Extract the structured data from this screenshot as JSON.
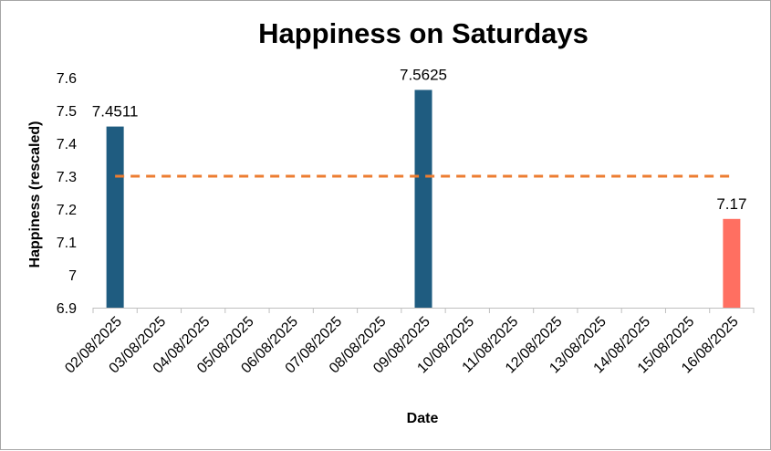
{
  "chart_data": {
    "type": "bar",
    "title": "Happiness on Saturdays",
    "xlabel": "Date",
    "ylabel": "Happiness (rescaled)",
    "ylim": [
      6.9,
      7.6
    ],
    "yticks": [
      6.9,
      7,
      7.1,
      7.2,
      7.3,
      7.4,
      7.5,
      7.6
    ],
    "ytick_labels": [
      "6.9",
      "7",
      "7.1",
      "7.2",
      "7.3",
      "7.4",
      "7.5",
      "7.6"
    ],
    "categories": [
      "02/08/2025",
      "03/08/2025",
      "04/08/2025",
      "05/08/2025",
      "06/08/2025",
      "07/08/2025",
      "08/08/2025",
      "09/08/2025",
      "10/08/2025",
      "11/08/2025",
      "12/08/2025",
      "13/08/2025",
      "14/08/2025",
      "15/08/2025",
      "16/08/2025"
    ],
    "values": [
      7.4511,
      null,
      null,
      null,
      null,
      null,
      null,
      7.5625,
      null,
      null,
      null,
      null,
      null,
      null,
      7.17
    ],
    "data_labels": [
      "7.4511",
      "",
      "",
      "",
      "",
      "",
      "",
      "7.5625",
      "",
      "",
      "",
      "",
      "",
      "",
      "7.17"
    ],
    "bar_colors": [
      "#1f5c80",
      null,
      null,
      null,
      null,
      null,
      null,
      "#1f5c80",
      null,
      null,
      null,
      null,
      null,
      null,
      "#ff6f61"
    ],
    "reference_line": {
      "value": 7.3,
      "color": "#ed7d31",
      "style": "dashed"
    },
    "grid": false,
    "legend": "none"
  }
}
